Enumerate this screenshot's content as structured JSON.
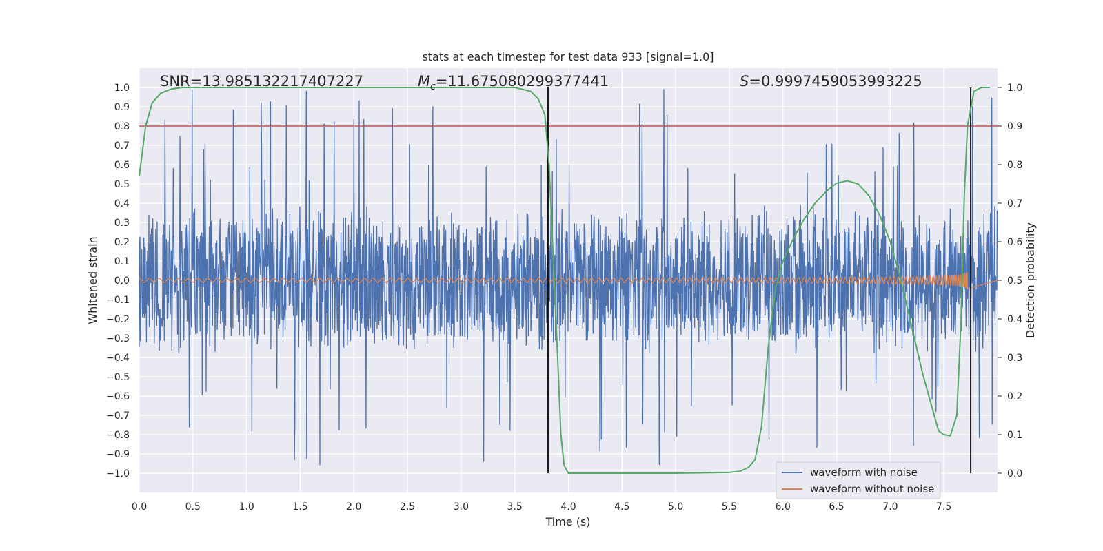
{
  "chart_data": {
    "type": "line",
    "title": "stats at each timestep for test data 933 [signal=1.0]",
    "xlabel": "Time (s)",
    "ylabel": "Whitened strain",
    "y2label": "Detection probability",
    "xlim": [
      0.0,
      8.0
    ],
    "ylim": [
      -1.1,
      1.1
    ],
    "y2lim": [
      -0.05,
      1.05
    ],
    "xticks": [
      0.0,
      0.5,
      1.0,
      1.5,
      2.0,
      2.5,
      3.0,
      3.5,
      4.0,
      4.5,
      5.0,
      5.5,
      6.0,
      6.5,
      7.0,
      7.5
    ],
    "yticks": [
      -1.0,
      -0.9,
      -0.8,
      -0.7,
      -0.6,
      -0.5,
      -0.4,
      -0.3,
      -0.2,
      -0.1,
      0.0,
      0.1,
      0.2,
      0.3,
      0.4,
      0.5,
      0.6,
      0.7,
      0.8,
      0.9,
      1.0
    ],
    "y2ticks": [
      0.0,
      0.1,
      0.2,
      0.3,
      0.4,
      0.5,
      0.6,
      0.7,
      0.8,
      0.9,
      1.0
    ],
    "grid": true,
    "legend_position": "lower-right",
    "annotations": {
      "snr": "SNR=13.985132217407227",
      "mc_symbol": "M",
      "mc_sub": "c",
      "mc_value": "=11.675080299377441",
      "s_symbol": "S",
      "s_value": "=0.9997459053993225"
    },
    "threshold_line": {
      "y": 0.8,
      "color": "#c44e52"
    },
    "vertical_lines": [
      3.81,
      7.75
    ],
    "series": [
      {
        "name": "waveform with noise",
        "color": "#4c72b0",
        "description": "whitened noisy strain, envelope roughly ±0.4 with spikes to ±1.0",
        "amplitude_envelope": 0.4,
        "peak_amplitude": 1.0
      },
      {
        "name": "waveform without noise",
        "color": "#dd8452",
        "chirp": {
          "start_amplitude": 0.01,
          "peak_amplitude": 0.5,
          "peak_time": 7.68,
          "end_time": 7.72
        }
      },
      {
        "color": "#55a868",
        "axis": "right",
        "points": [
          [
            0.0,
            0.77
          ],
          [
            0.06,
            0.9
          ],
          [
            0.12,
            0.96
          ],
          [
            0.2,
            0.985
          ],
          [
            0.3,
            0.996
          ],
          [
            0.4,
            1.0
          ],
          [
            1.0,
            1.0
          ],
          [
            2.0,
            1.0
          ],
          [
            3.0,
            1.0
          ],
          [
            3.5,
            1.0
          ],
          [
            3.65,
            0.99
          ],
          [
            3.72,
            0.97
          ],
          [
            3.78,
            0.93
          ],
          [
            3.82,
            0.8
          ],
          [
            3.86,
            0.55
          ],
          [
            3.9,
            0.3
          ],
          [
            3.93,
            0.1
          ],
          [
            3.96,
            0.02
          ],
          [
            4.0,
            0.0
          ],
          [
            4.5,
            0.0
          ],
          [
            5.0,
            0.0
          ],
          [
            5.5,
            0.002
          ],
          [
            5.6,
            0.005
          ],
          [
            5.68,
            0.015
          ],
          [
            5.74,
            0.035
          ],
          [
            5.8,
            0.12
          ],
          [
            5.86,
            0.32
          ],
          [
            5.93,
            0.48
          ],
          [
            6.0,
            0.55
          ],
          [
            6.1,
            0.61
          ],
          [
            6.2,
            0.66
          ],
          [
            6.3,
            0.7
          ],
          [
            6.4,
            0.73
          ],
          [
            6.5,
            0.752
          ],
          [
            6.6,
            0.758
          ],
          [
            6.7,
            0.75
          ],
          [
            6.8,
            0.72
          ],
          [
            6.9,
            0.67
          ],
          [
            7.0,
            0.6
          ],
          [
            7.1,
            0.5
          ],
          [
            7.2,
            0.38
          ],
          [
            7.3,
            0.26
          ],
          [
            7.4,
            0.16
          ],
          [
            7.45,
            0.11
          ],
          [
            7.5,
            0.1
          ],
          [
            7.56,
            0.097
          ],
          [
            7.62,
            0.15
          ],
          [
            7.66,
            0.4
          ],
          [
            7.69,
            0.72
          ],
          [
            7.72,
            0.9
          ],
          [
            7.78,
            0.99
          ],
          [
            7.85,
            1.0
          ],
          [
            7.93,
            1.0
          ]
        ]
      }
    ]
  }
}
